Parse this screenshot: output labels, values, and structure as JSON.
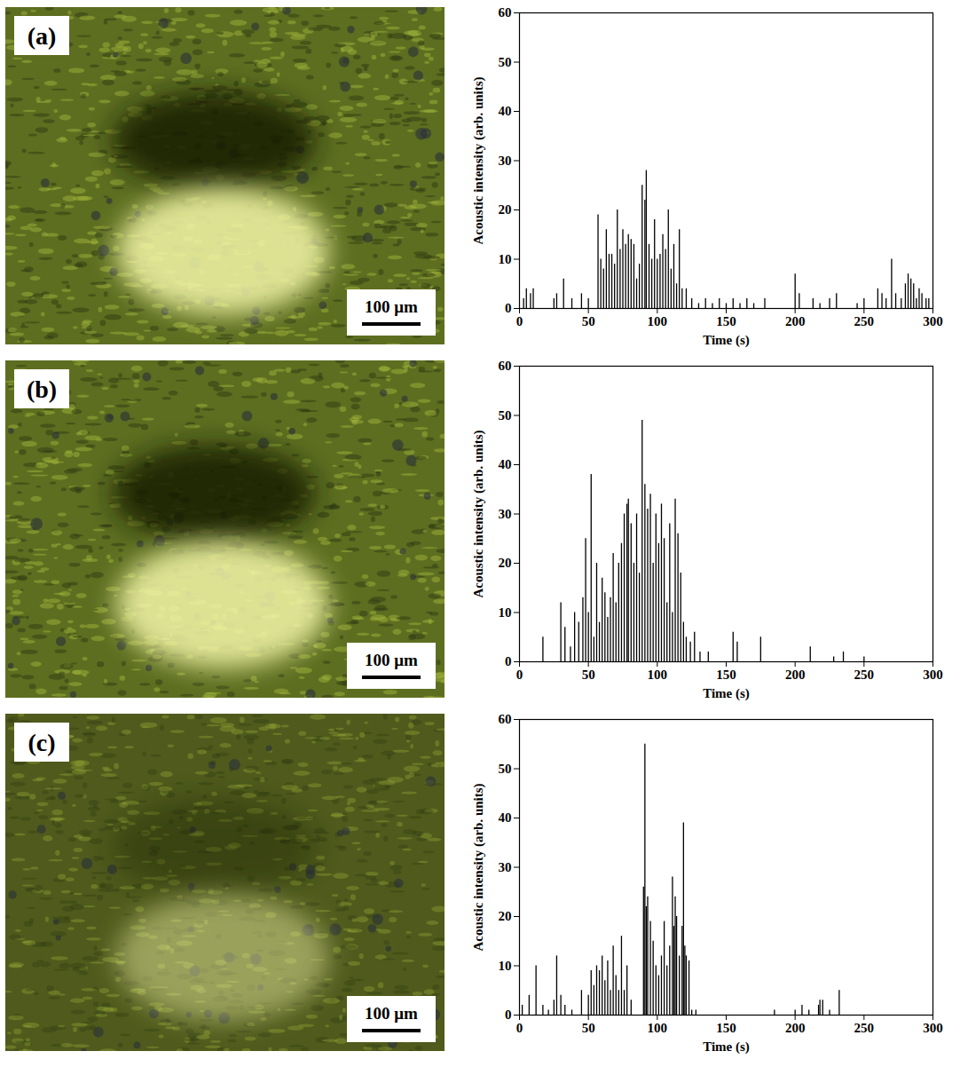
{
  "images": [
    {
      "label": "(a)",
      "scale_bar": "100 μm"
    },
    {
      "label": "(b)",
      "scale_bar": "100 μm"
    },
    {
      "label": "(c)",
      "scale_bar": "100 μm"
    }
  ],
  "chart_data": [
    {
      "type": "bar",
      "x_label": "Time (s)",
      "y_label": "Acoustic intensity (arb. units)",
      "color": "#000000",
      "xlim": [
        0,
        300
      ],
      "xticks": [
        0,
        50,
        100,
        150,
        200,
        250,
        300
      ],
      "ylim": [
        0,
        60
      ],
      "yticks": [
        0,
        10,
        20,
        30,
        40,
        50,
        60
      ],
      "grid": false,
      "x": [
        3,
        5,
        8,
        10,
        25,
        27,
        32,
        38,
        45,
        50,
        57,
        59,
        61,
        63,
        65,
        67,
        69,
        71,
        73,
        75,
        77,
        79,
        81,
        83,
        85,
        87,
        89,
        91,
        92,
        94,
        96,
        98,
        100,
        102,
        104,
        106,
        108,
        110,
        112,
        114,
        116,
        118,
        121,
        125,
        130,
        135,
        140,
        145,
        150,
        155,
        160,
        165,
        170,
        178,
        200,
        203,
        213,
        218,
        225,
        230,
        245,
        250,
        260,
        263,
        266,
        270,
        273,
        277,
        280,
        282,
        284,
        286,
        288,
        290,
        292,
        295,
        297
      ],
      "values": [
        2,
        4,
        3,
        4,
        2,
        3,
        6,
        2,
        3,
        2,
        19,
        10,
        8,
        16,
        11,
        11,
        9,
        20,
        12,
        16,
        13,
        15,
        14,
        13,
        6,
        9,
        25,
        22,
        28,
        13,
        10,
        18,
        10,
        11,
        15,
        12,
        20,
        8,
        13,
        5,
        16,
        4,
        4,
        2,
        1,
        2,
        1,
        2,
        1,
        2,
        1,
        2,
        1,
        2,
        7,
        3,
        2,
        1,
        2,
        3,
        1,
        2,
        4,
        3,
        2,
        10,
        3,
        2,
        5,
        7,
        6,
        5,
        2,
        4,
        3,
        2,
        2
      ]
    },
    {
      "type": "bar",
      "x_label": "Time (s)",
      "y_label": "Acoustic intensity (arb. units)",
      "color": "#000000",
      "xlim": [
        0,
        300
      ],
      "xticks": [
        0,
        50,
        100,
        150,
        200,
        250,
        300
      ],
      "ylim": [
        0,
        60
      ],
      "yticks": [
        0,
        10,
        20,
        30,
        40,
        50,
        60
      ],
      "grid": false,
      "x": [
        17,
        30,
        33,
        37,
        40,
        43,
        46,
        48,
        50,
        52,
        54,
        56,
        58,
        60,
        62,
        64,
        66,
        68,
        70,
        72,
        74,
        76,
        78,
        79,
        81,
        83,
        85,
        87,
        89,
        91,
        93,
        95,
        97,
        99,
        101,
        103,
        105,
        107,
        109,
        111,
        113,
        115,
        117,
        119,
        121,
        124,
        127,
        131,
        137,
        155,
        158,
        175,
        211,
        228,
        235,
        250
      ],
      "values": [
        5,
        12,
        7,
        3,
        10,
        8,
        13,
        25,
        10,
        38,
        5,
        20,
        8,
        17,
        14,
        9,
        13,
        22,
        12,
        20,
        24,
        30,
        32,
        33,
        28,
        20,
        30,
        18,
        49,
        36,
        31,
        34,
        20,
        30,
        24,
        32,
        25,
        12,
        28,
        10,
        33,
        26,
        18,
        8,
        5,
        4,
        6,
        2,
        2,
        6,
        4,
        5,
        3,
        1,
        2,
        1
      ]
    },
    {
      "type": "bar",
      "x_label": "Time (s)",
      "y_label": "Acoustic intensity (arb. units)",
      "color": "#000000",
      "xlim": [
        0,
        300
      ],
      "xticks": [
        0,
        50,
        100,
        150,
        200,
        250,
        300
      ],
      "ylim": [
        0,
        60
      ],
      "yticks": [
        0,
        10,
        20,
        30,
        40,
        50,
        60
      ],
      "grid": false,
      "x": [
        2,
        7,
        12,
        17,
        21,
        25,
        27,
        30,
        33,
        38,
        45,
        50,
        52,
        54,
        56,
        58,
        60,
        62,
        64,
        66,
        68,
        70,
        72,
        74,
        76,
        78,
        81,
        90,
        91,
        92,
        93,
        95,
        97,
        99,
        101,
        103,
        105,
        107,
        109,
        111,
        112,
        113,
        114,
        116,
        118,
        119,
        120,
        121,
        123,
        125,
        128,
        185,
        200,
        205,
        210,
        217,
        218,
        220,
        225,
        232
      ],
      "values": [
        2,
        4,
        10,
        2,
        1,
        3,
        12,
        4,
        2,
        1,
        5,
        4,
        9,
        6,
        10,
        9,
        12,
        7,
        11,
        5,
        14,
        8,
        5,
        16,
        5,
        10,
        3,
        26,
        55,
        22,
        24,
        19,
        15,
        10,
        8,
        12,
        19,
        10,
        14,
        28,
        18,
        24,
        20,
        12,
        18,
        39,
        14,
        12,
        11,
        1,
        1,
        1,
        1,
        2,
        1,
        2,
        3,
        3,
        1,
        5
      ]
    }
  ]
}
